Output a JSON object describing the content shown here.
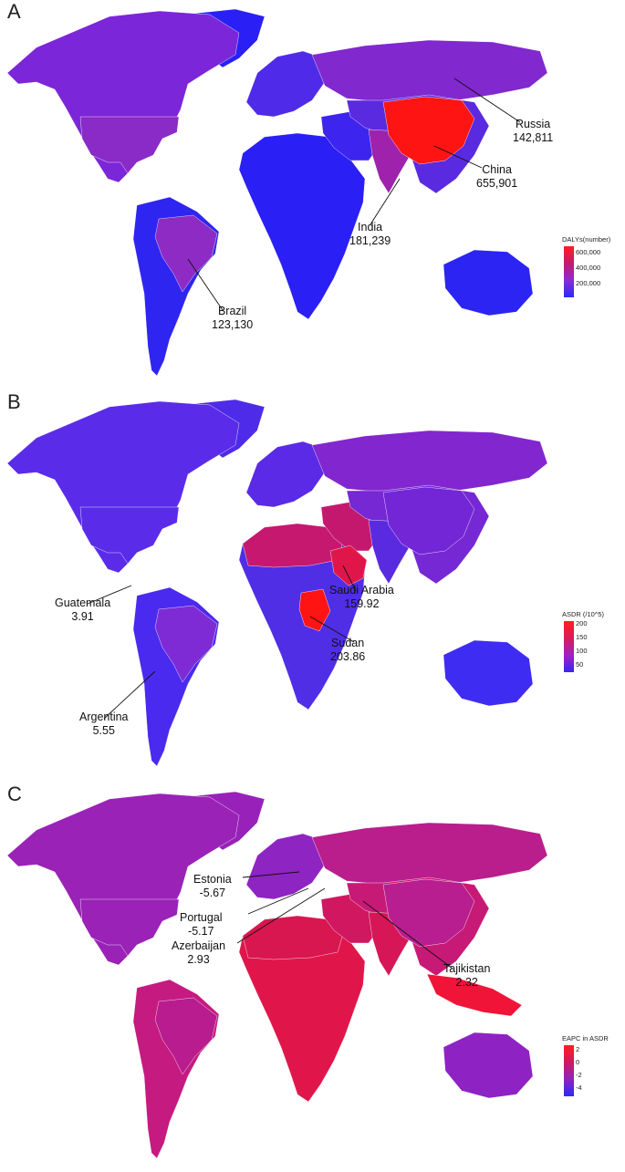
{
  "panels": [
    {
      "letter": "A",
      "legend": {
        "title": "DALYs(number)",
        "ticks": [
          "600,000",
          "400,000",
          "200,000"
        ],
        "gradient": [
          "#ff1f1f",
          "#c41a6e",
          "#8a2cd6",
          "#2a2af5"
        ]
      },
      "callouts": [
        {
          "country": "Russia",
          "value": "142,811"
        },
        {
          "country": "China",
          "value": "655,901"
        },
        {
          "country": "India",
          "value": "181,239"
        },
        {
          "country": "Brazil",
          "value": "123,130"
        }
      ],
      "colors": {
        "americas_north": "#7b26d9",
        "usa": "#8a2bc7",
        "south_america": "#2f25f0",
        "brazil": "#8d2bc4",
        "europe": "#4f2ae8",
        "russia": "#8128cf",
        "africa": "#2a1ff5",
        "middle_east": "#3d24ee",
        "india": "#9f22ac",
        "china": "#ff1414",
        "asia": "#5a2ae0",
        "australia": "#2b24f3",
        "greenland": "#2a1ff5"
      }
    },
    {
      "letter": "B",
      "legend": {
        "title": "ASDR (/10^5)",
        "ticks": [
          "200",
          "150",
          "100",
          "50"
        ],
        "gradient": [
          "#ff1f1f",
          "#d91a5a",
          "#a020c8",
          "#3a26f2"
        ]
      },
      "callouts": [
        {
          "country": "Guatemala",
          "value": "3.91"
        },
        {
          "country": "Saudi Arabia",
          "value": "159.92"
        },
        {
          "country": "Sudan",
          "value": "203.86"
        },
        {
          "country": "Argentina",
          "value": "5.55"
        }
      ],
      "colors": {
        "americas_north": "#5a2cea",
        "usa": "#5a2cea",
        "south_america": "#4a2aee",
        "brazil": "#7e2bd6",
        "europe": "#5a2ae6",
        "russia": "#8226cf",
        "africa": "#4f2ee6",
        "north_africa": "#c5186e",
        "middle_east": "#c4186e",
        "india": "#5a2ae0",
        "china": "#7326d6",
        "asia": "#7528d3",
        "australia": "#3f2cf2",
        "greenland": "#4e2be9",
        "sudan": "#ff1414",
        "saudi": "#e0164a"
      }
    },
    {
      "letter": "C",
      "legend": {
        "title": "EAPC in ASDR",
        "ticks": [
          "2",
          "0",
          "-2",
          "-4"
        ],
        "gradient": [
          "#ff1f1f",
          "#d21860",
          "#9022c0",
          "#2a2af5"
        ]
      },
      "callouts": [
        {
          "country": "Estonia",
          "value": "-5.67"
        },
        {
          "country": "Portugal",
          "value": "-5.17"
        },
        {
          "country": "Azerbaijan",
          "value": "2.93"
        },
        {
          "country": "Tajikistan",
          "value": "2.32"
        }
      ],
      "colors": {
        "americas_north": "#9a22b7",
        "usa": "#9a22b7",
        "south_america": "#c51a80",
        "brazil": "#b81c8e",
        "europe": "#8e24c2",
        "russia": "#b91e8c",
        "africa": "#e0164a",
        "north_africa": "#d8164f",
        "middle_east": "#d01760",
        "india": "#d61656",
        "china": "#b81e8f",
        "asia": "#c71a76",
        "australia": "#8e22c3",
        "greenland": "#9822b9",
        "se_asia": "#f01438"
      }
    }
  ]
}
